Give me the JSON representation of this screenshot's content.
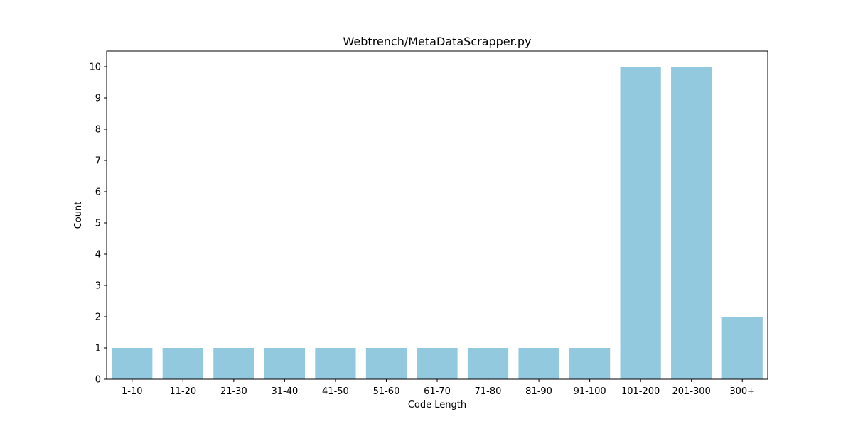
{
  "chart_data": {
    "type": "bar",
    "title": "Webtrench/MetaDataScrapper.py",
    "xlabel": "Code Length",
    "ylabel": "Count",
    "categories": [
      "1-10",
      "11-20",
      "21-30",
      "31-40",
      "41-50",
      "51-60",
      "61-70",
      "71-80",
      "81-90",
      "91-100",
      "101-200",
      "201-300",
      "300+"
    ],
    "values": [
      1,
      1,
      1,
      1,
      1,
      1,
      1,
      1,
      1,
      1,
      10,
      10,
      2
    ],
    "ylim": [
      0,
      10.5
    ],
    "yticks": [
      0,
      1,
      2,
      3,
      4,
      5,
      6,
      7,
      8,
      9,
      10
    ],
    "grid": false,
    "legend": "none",
    "bar_color": "#92c9df"
  }
}
